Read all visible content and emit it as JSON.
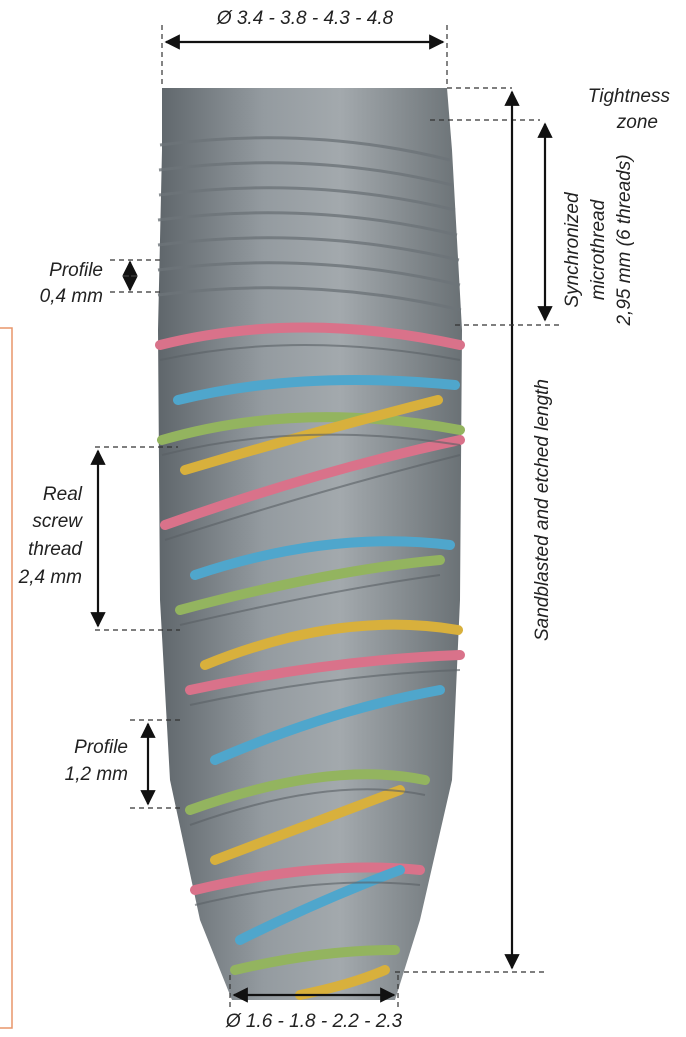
{
  "labels": {
    "top_diameter": "Ø 3.4 - 3.8 - 4.3 - 4.8",
    "bottom_diameter": "Ø 1.6 - 1.8 - 2.2 - 2.3",
    "tightness_line1": "Tightness",
    "tightness_line2": "zone",
    "micro_line1": "Synchronized",
    "micro_line2": "microthread",
    "micro_line3": "2,95 mm (6 threads)",
    "profile_small_line1": "Profile",
    "profile_small_line2": "0,4 mm",
    "real_line1": "Real",
    "real_line2": "screw",
    "real_line3": "thread",
    "real_line4": "2,4 mm",
    "profile_large_line1": "Profile",
    "profile_large_line2": "1,2 mm",
    "sandblasted": "Sandblasted and etched length"
  },
  "colors": {
    "body": "#8a9196",
    "body_dark": "#5f666b",
    "thread_pink": "#d9728a",
    "thread_blue": "#4fa6cc",
    "thread_green": "#93b45f",
    "thread_yellow": "#d8b03c",
    "frame_orange": "#e8956a"
  }
}
